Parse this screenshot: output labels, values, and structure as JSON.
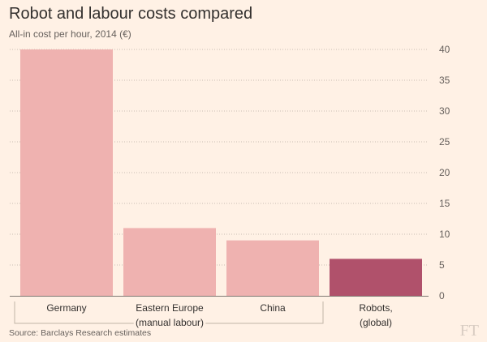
{
  "title": "Robot and labour costs compared",
  "subtitle": "All-in cost per hour, 2014 (€)",
  "source": "Source: Barclays Research estimates",
  "logo": "FT",
  "colors": {
    "background": "#fff1e5",
    "labour_bar": "#efb2b0",
    "robot_bar": "#b0516b",
    "grid": "#c8bdb4",
    "bracket": "#c2b5a8"
  },
  "chart_data": {
    "type": "bar",
    "title": "Robot and labour costs compared",
    "subtitle": "All-in cost per hour, 2014 (€)",
    "categories": [
      "Germany",
      "Eastern Europe (manual labour)",
      "China",
      "Robots, (global)"
    ],
    "category_lines": [
      [
        "Germany"
      ],
      [
        "Eastern Europe",
        "(manual labour)"
      ],
      [
        "China"
      ],
      [
        "Robots,",
        "(global)"
      ]
    ],
    "values": [
      40,
      11,
      9,
      6
    ],
    "highlight_index": 3,
    "bracket_group": [
      0,
      2
    ],
    "y_ticks": [
      0,
      5,
      10,
      15,
      20,
      25,
      30,
      35,
      40
    ],
    "ylim": [
      0,
      40
    ],
    "y_axis_side": "right",
    "grid": true,
    "xlabel": "",
    "ylabel": ""
  }
}
